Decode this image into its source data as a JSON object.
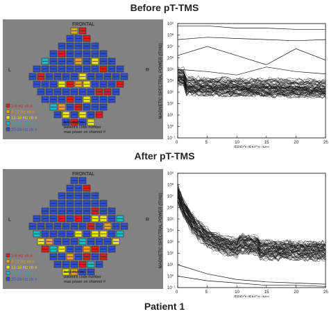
{
  "titles": {
    "before": "Before pT-TMS",
    "after": "After pT-TMS",
    "patient": "Patient 1"
  },
  "maps": [
    {
      "frontal": "FRONTAL",
      "left": "L",
      "right": "R",
      "legend": [
        {
          "text": "2-8 Hz ch #",
          "color": "#d62020"
        },
        {
          "text": "8-12 Hz ch #",
          "color": "#e8a020"
        },
        {
          "text": "12-16 Hz ch #",
          "color": "#e8e020"
        },
        {
          "text": "16-20 Hz ch #",
          "color": "#20b8c0"
        },
        {
          "text": "20-26 Hz ch #",
          "color": "#3050d0"
        }
      ],
      "info": [
        "beta rhythm",
        "patient's code number",
        "max power on channel #"
      ]
    },
    {
      "frontal": "FRONTAL",
      "left": "L",
      "right": "R",
      "legend": [
        {
          "text": "2-8 Hz ch #",
          "color": "#d62020"
        },
        {
          "text": "8-12 Hz ch #",
          "color": "#e8a020"
        },
        {
          "text": "12-16 Hz ch #",
          "color": "#e8e020"
        },
        {
          "text": "16-20 Hz ch #",
          "color": "#20b8c0"
        },
        {
          "text": "20-26 Hz ch #",
          "color": "#3050d0"
        }
      ],
      "info": [
        "beta rhythm",
        "patient's code number",
        "max power on channel #"
      ]
    }
  ],
  "chart_data": [
    {
      "type": "line",
      "xlabel": "FREQUENCY (Hz)",
      "ylabel": "MAGNETIC SPECTRAL POWER (fT/Hz)",
      "xlim": [
        0,
        25
      ],
      "ylim_log10": [
        -1,
        9
      ],
      "x_ticks": [
        "0",
        "5",
        "10",
        "15",
        "20",
        "25"
      ],
      "y_ticks": [
        "10⁻¹",
        "10⁰",
        "10¹",
        "10²",
        "10³",
        "10⁴",
        "10⁵",
        "10⁶",
        "10⁷",
        "10⁸",
        "10⁹"
      ],
      "log_y": true,
      "series_summary": {
        "bundle_count": 60,
        "bundle_level_log10": 3.6,
        "outliers": [
          {
            "x": [
              0,
              5,
              10,
              15,
              20,
              25
            ],
            "log10_y": [
              8.8,
              8.8,
              8.6,
              8.6,
              8.5,
              8.5
            ]
          },
          {
            "x": [
              0,
              5,
              10,
              15,
              20,
              25
            ],
            "log10_y": [
              7.6,
              7.8,
              7.7,
              7.6,
              7.5,
              7.6
            ]
          },
          {
            "x": [
              0,
              5,
              10,
              15,
              20,
              25
            ],
            "log10_y": [
              6.2,
              7.0,
              6.2,
              5.4,
              6.8,
              5.8
            ]
          },
          {
            "x": [
              0,
              5,
              10,
              15,
              20,
              25
            ],
            "log10_y": [
              5.0,
              4.8,
              4.5,
              5.2,
              4.8,
              4.6
            ]
          }
        ]
      }
    },
    {
      "type": "line",
      "xlabel": "FREQUENCY (Hz)",
      "ylabel": "MAGNETIC SPECTRAL POWER (fT/Hz)",
      "xlim": [
        0,
        25
      ],
      "ylim_log10": [
        -1,
        9
      ],
      "x_ticks": [
        "0",
        "5",
        "10",
        "15",
        "20",
        "25"
      ],
      "y_ticks": [
        "10⁻¹",
        "10⁰",
        "10¹",
        "10²",
        "10³",
        "10⁴",
        "10⁵",
        "10⁶",
        "10⁷",
        "10⁸",
        "10⁹"
      ],
      "log_y": true,
      "series_summary": {
        "bundle_count": 60,
        "bundle_start_log10": 7.2,
        "bundle_end_log10": 2.2,
        "outliers": [
          {
            "x": [
              0,
              5,
              10,
              15,
              20,
              25
            ],
            "log10_y": [
              1.0,
              0.2,
              -0.3,
              -0.5,
              -0.6,
              -0.7
            ]
          },
          {
            "x": [
              0,
              5,
              10,
              15,
              20,
              25
            ],
            "log10_y": [
              0.0,
              -0.4,
              -0.6,
              -0.8,
              -0.8,
              -0.9
            ]
          }
        ]
      }
    }
  ]
}
